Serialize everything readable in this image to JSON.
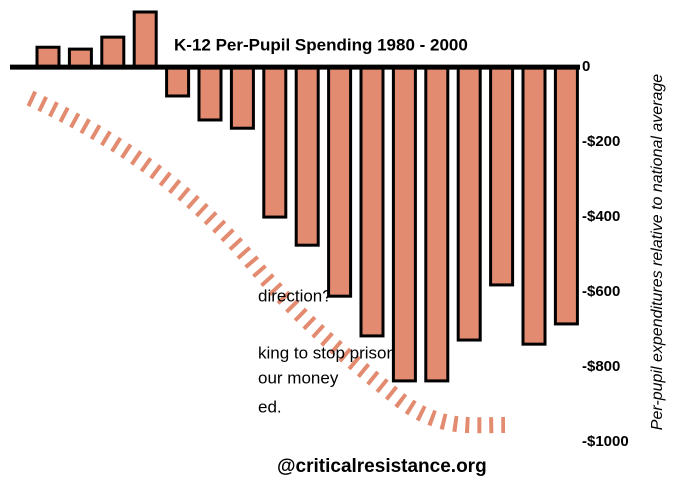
{
  "chart_data": {
    "type": "bar",
    "title": "K-12 Per-Pupil Spending  1980 - 2000",
    "y_axis_label": "Per-pupil expenditures relative to national average",
    "categories": [
      null,
      null,
      null,
      null,
      null,
      null,
      null,
      null,
      null,
      null,
      null,
      null,
      null,
      null,
      null,
      null,
      null
    ],
    "values": [
      53,
      48,
      80,
      147,
      -77,
      -141,
      -163,
      -400,
      -475,
      -611,
      -717,
      -837,
      -837,
      -728,
      -581,
      -739,
      -685
    ],
    "color": "#e38b70",
    "ylim": [
      -1120,
      179
    ],
    "yticks": [
      0,
      {
        "value": -200,
        "label": "-$200"
      },
      {
        "value": -400,
        "label": "-$400"
      },
      {
        "value": -600,
        "label": "-$600"
      },
      {
        "value": -800,
        "label": "-$800"
      },
      {
        "value": -1000,
        "label": "-$1000"
      }
    ],
    "annotations": [
      "direction?",
      "king to stop prison",
      "our money",
      "ed.",
      "@criticalresistance.org"
    ]
  }
}
